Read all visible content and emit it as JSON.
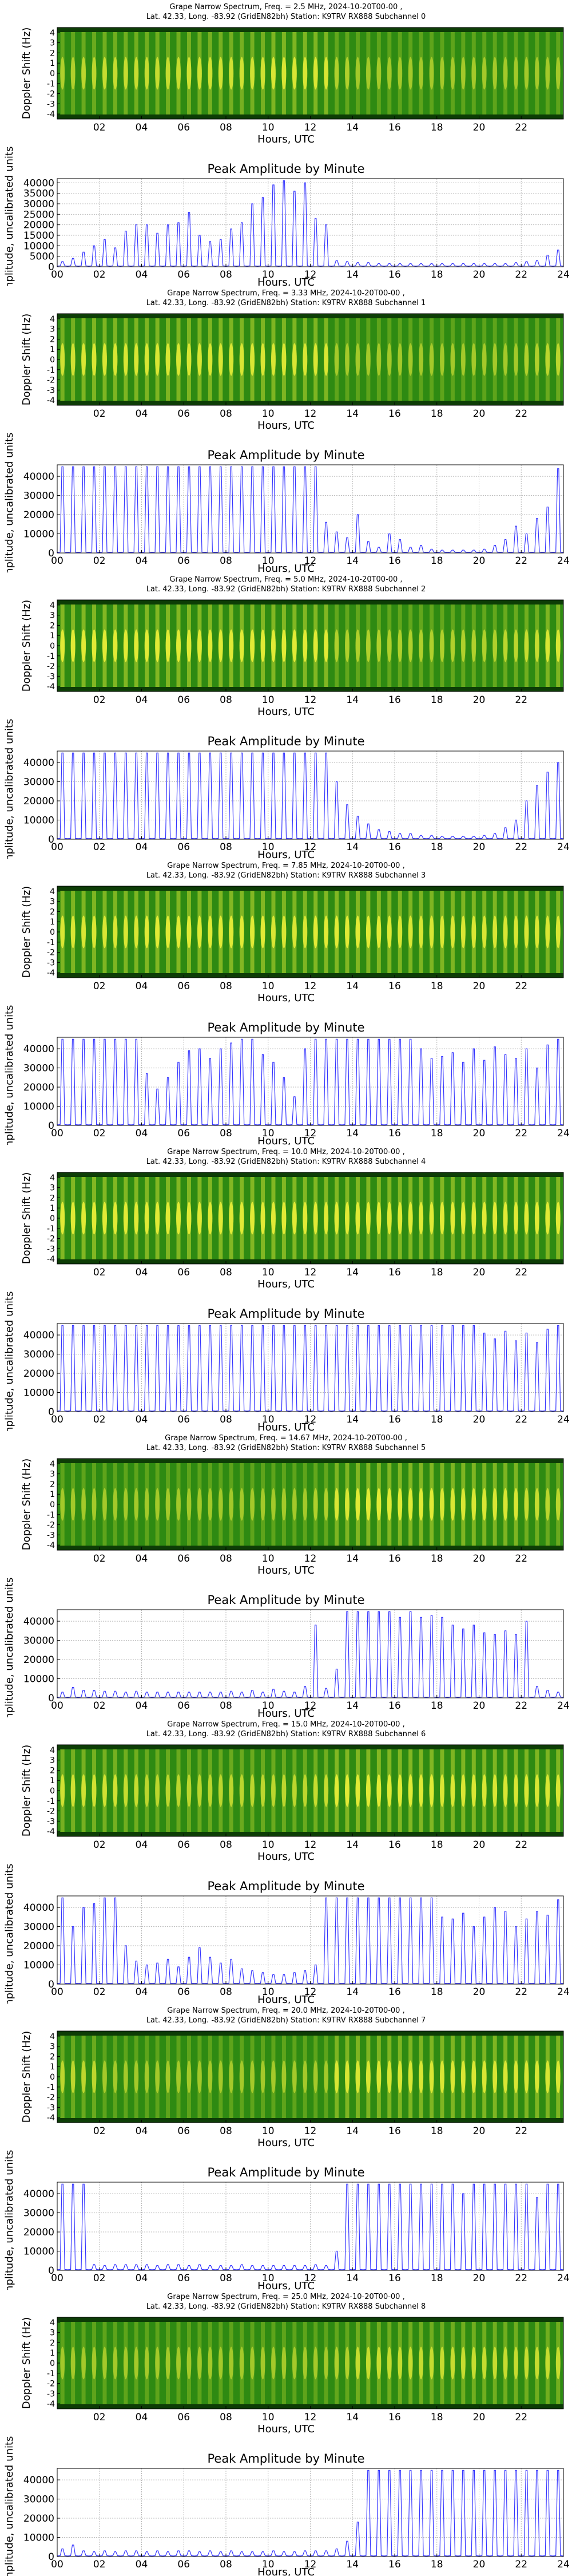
{
  "panel_common": {
    "spec_xlabel": "Hours, UTC",
    "spec_ylabel": "Doppler Shift (Hz)",
    "spec_xticks": [
      "02",
      "04",
      "06",
      "08",
      "10",
      "12",
      "14",
      "16",
      "18",
      "20",
      "22"
    ],
    "spec_yticks": [
      "4",
      "3",
      "2",
      "1",
      "0",
      "-1",
      "-2",
      "-3",
      "-4"
    ],
    "amp_title": "Peak Amplitude by Minute",
    "amp_xlabel": "Hours, UTC",
    "amp_ylabel": "Amplitude, uncalibrated units",
    "amp_xticks": [
      "00",
      "02",
      "04",
      "06",
      "08",
      "10",
      "12",
      "14",
      "16",
      "18",
      "20",
      "22",
      "24"
    ],
    "colors": {
      "line": "#3333ff",
      "spec_bg": "#2e8a12",
      "spec_peak": "#e8ee38",
      "spec_edge": "#0d3d06",
      "grid": "#b8b8b8"
    }
  },
  "chart_data": [
    {
      "type": "heatmap",
      "title_line1": "Grape Narrow Spectrum, Freq. = 2.5 MHz, 2024-10-20T00-00 ,",
      "title_line2": "Lat.  42.33, Long. -83.92 (GridEN82bh) Station: K9TRV RX888 Subchannel 0",
      "xlabel": "Hours, UTC",
      "ylabel": "Doppler Shift (Hz)",
      "xlim": [
        0,
        24
      ],
      "ylim": [
        -4.5,
        4.5
      ],
      "pulse_rows_hz": [
        0.5,
        0,
        -0.5
      ],
      "intensity": [
        0.4,
        0.5,
        0.6,
        0.6,
        0.6,
        0.6,
        0.7,
        0.7,
        0.7,
        0.7,
        0.8,
        0.8,
        0.8,
        0.4,
        0.3,
        0.3,
        0.3,
        0.3,
        0.3,
        0.3,
        0.3,
        0.3,
        0.3,
        0.3
      ]
    },
    {
      "type": "line",
      "title": "Peak Amplitude by Minute",
      "xlabel": "Hours, UTC",
      "ylabel": "Amplitude, uncalibrated units",
      "xlim": [
        0,
        24
      ],
      "ylim": [
        0,
        42000
      ],
      "yticks": [
        0,
        5000,
        10000,
        15000,
        20000,
        25000,
        30000,
        35000,
        40000
      ],
      "peaks": [
        2500,
        4000,
        7000,
        10000,
        13000,
        9000,
        17000,
        20000,
        20000,
        16000,
        20000,
        21000,
        26000,
        15000,
        12000,
        13000,
        18000,
        21000,
        30000,
        33000,
        39000,
        41000,
        36000,
        40000,
        23000,
        20000,
        3000,
        2500,
        2000,
        2000,
        1500,
        1500,
        1500,
        1500,
        1500,
        1500,
        1500,
        1500,
        1500,
        1500,
        1500,
        1500,
        1500,
        2000,
        2500,
        3000,
        5500,
        8000
      ]
    },
    {
      "type": "heatmap",
      "title_line1": "Grape Narrow Spectrum, Freq. = 3.33 MHz, 2024-10-20T00-00 ,",
      "title_line2": "Lat.  42.33, Long. -83.92 (GridEN82bh) Station: K9TRV RX888 Subchannel 1",
      "xlabel": "Hours, UTC",
      "ylabel": "Doppler Shift (Hz)",
      "xlim": [
        0,
        24
      ],
      "ylim": [
        -4.5,
        4.5
      ],
      "pulse_rows_hz": [
        0.5,
        0,
        -0.5
      ],
      "intensity": [
        0.7,
        0.8,
        0.8,
        0.8,
        0.8,
        0.8,
        0.8,
        0.8,
        0.8,
        0.8,
        0.8,
        0.8,
        0.8,
        0.3,
        0.3,
        0.3,
        0.3,
        0.3,
        0.3,
        0.3,
        0.3,
        0.3,
        0.4,
        0.5
      ]
    },
    {
      "type": "line",
      "title": "Peak Amplitude by Minute",
      "xlabel": "Hours, UTC",
      "ylabel": "Amplitude, uncalibrated units",
      "xlim": [
        0,
        24
      ],
      "ylim": [
        0,
        46000
      ],
      "yticks": [
        0,
        10000,
        20000,
        30000,
        40000
      ],
      "peaks": [
        45000,
        45000,
        45000,
        45000,
        45000,
        45000,
        45000,
        45000,
        45000,
        45000,
        45000,
        45000,
        45000,
        45000,
        45000,
        45000,
        45000,
        45000,
        45000,
        45000,
        45000,
        45000,
        45000,
        45000,
        45000,
        16000,
        11000,
        8000,
        20000,
        6000,
        3000,
        10000,
        7000,
        3000,
        4000,
        2000,
        1500,
        1500,
        1500,
        1500,
        2000,
        4000,
        7000,
        14000,
        10000,
        18000,
        24000,
        44000
      ]
    },
    {
      "type": "heatmap",
      "title_line1": "Grape Narrow Spectrum, Freq. = 5.0 MHz, 2024-10-20T00-00 ,",
      "title_line2": "Lat.  42.33, Long. -83.92 (GridEN82bh) Station: K9TRV RX888 Subchannel 2",
      "xlabel": "Hours, UTC",
      "ylabel": "Doppler Shift (Hz)",
      "xlim": [
        0,
        24
      ],
      "ylim": [
        -4.5,
        4.5
      ],
      "pulse_rows_hz": [
        0.5,
        0,
        -0.5
      ],
      "intensity": [
        0.9,
        0.9,
        0.9,
        0.9,
        0.9,
        0.9,
        0.9,
        0.9,
        0.9,
        0.9,
        0.9,
        0.9,
        0.9,
        0.4,
        0.4,
        0.4,
        0.4,
        0.4,
        0.4,
        0.4,
        0.4,
        0.5,
        0.6,
        0.8
      ]
    },
    {
      "type": "line",
      "title": "Peak Amplitude by Minute",
      "xlabel": "Hours, UTC",
      "ylabel": "Amplitude, uncalibrated units",
      "xlim": [
        0,
        24
      ],
      "ylim": [
        0,
        46000
      ],
      "yticks": [
        0,
        10000,
        20000,
        30000,
        40000
      ],
      "peaks": [
        45000,
        45000,
        45000,
        45000,
        45000,
        45000,
        45000,
        45000,
        45000,
        45000,
        45000,
        45000,
        45000,
        45000,
        45000,
        45000,
        45000,
        45000,
        45000,
        45000,
        45000,
        45000,
        45000,
        45000,
        45000,
        45000,
        30000,
        18000,
        12000,
        8000,
        5000,
        4000,
        3000,
        3000,
        2000,
        2000,
        1500,
        1500,
        1500,
        1500,
        2000,
        3000,
        6000,
        10000,
        20000,
        28000,
        35000,
        40000
      ]
    },
    {
      "type": "heatmap",
      "title_line1": "Grape Narrow Spectrum, Freq. = 7.85 MHz, 2024-10-20T00-00 ,",
      "title_line2": "Lat.  42.33, Long. -83.92 (GridEN82bh) Station: K9TRV RX888 Subchannel 3",
      "xlabel": "Hours, UTC",
      "ylabel": "Doppler Shift (Hz)",
      "xlim": [
        0,
        24
      ],
      "ylim": [
        -4.5,
        4.5
      ],
      "pulse_rows_hz": [
        0.5,
        0,
        -0.5
      ],
      "intensity": [
        0.8,
        0.8,
        0.8,
        0.8,
        0.9,
        0.9,
        0.9,
        0.9,
        0.9,
        0.9,
        0.8,
        0.8,
        0.9,
        0.9,
        0.9,
        0.9,
        0.8,
        0.8,
        0.8,
        0.8,
        0.8,
        0.8,
        0.8,
        0.8
      ]
    },
    {
      "type": "line",
      "title": "Peak Amplitude by Minute",
      "xlabel": "Hours, UTC",
      "ylabel": "Amplitude, uncalibrated units",
      "xlim": [
        0,
        24
      ],
      "ylim": [
        0,
        46000
      ],
      "yticks": [
        0,
        10000,
        20000,
        30000,
        40000
      ],
      "peaks": [
        45000,
        45000,
        45000,
        45000,
        45000,
        45000,
        45000,
        45000,
        27000,
        19000,
        25000,
        33000,
        39000,
        40000,
        35000,
        40000,
        43000,
        45000,
        45000,
        37000,
        33000,
        25000,
        15000,
        40000,
        45000,
        45000,
        45000,
        45000,
        45000,
        45000,
        45000,
        45000,
        45000,
        45000,
        40000,
        35000,
        36000,
        38000,
        33000,
        40000,
        34000,
        41000,
        37000,
        35000,
        40000,
        30000,
        42000,
        45000
      ]
    },
    {
      "type": "heatmap",
      "title_line1": "Grape Narrow Spectrum, Freq. = 10.0 MHz, 2024-10-20T00-00 ,",
      "title_line2": "Lat.  42.33, Long. -83.92 (GridEN82bh) Station: K9TRV RX888 Subchannel 4",
      "xlabel": "Hours, UTC",
      "ylabel": "Doppler Shift (Hz)",
      "xlim": [
        0,
        24
      ],
      "ylim": [
        -4.5,
        4.5
      ],
      "pulse_rows_hz": [
        0.5,
        0,
        -0.5
      ],
      "intensity": [
        0.9,
        0.9,
        0.9,
        0.9,
        0.9,
        0.9,
        0.9,
        0.9,
        0.9,
        0.9,
        0.9,
        0.9,
        0.9,
        0.9,
        0.9,
        0.9,
        0.9,
        0.9,
        0.9,
        0.9,
        0.9,
        0.9,
        0.9,
        0.9
      ]
    },
    {
      "type": "line",
      "title": "Peak Amplitude by Minute",
      "xlabel": "Hours, UTC",
      "ylabel": "Amplitude, uncalibrated units",
      "xlim": [
        0,
        24
      ],
      "ylim": [
        0,
        46000
      ],
      "yticks": [
        0,
        10000,
        20000,
        30000,
        40000
      ],
      "peaks": [
        45000,
        45000,
        45000,
        45000,
        45000,
        45000,
        45000,
        45000,
        45000,
        45000,
        45000,
        45000,
        45000,
        45000,
        45000,
        45000,
        45000,
        45000,
        45000,
        45000,
        45000,
        45000,
        45000,
        45000,
        45000,
        45000,
        45000,
        45000,
        45000,
        45000,
        45000,
        45000,
        45000,
        45000,
        45000,
        45000,
        45000,
        45000,
        45000,
        45000,
        41000,
        38000,
        42000,
        37000,
        41000,
        36000,
        43000,
        45000
      ]
    },
    {
      "type": "heatmap",
      "title_line1": "Grape Narrow Spectrum, Freq. = 14.67 MHz, 2024-10-20T00-00 ,",
      "title_line2": "Lat.  42.33, Long. -83.92 (GridEN82bh) Station: K9TRV RX888 Subchannel 5",
      "xlabel": "Hours, UTC",
      "ylabel": "Doppler Shift (Hz)",
      "xlim": [
        0,
        24
      ],
      "ylim": [
        -4.5,
        4.5
      ],
      "pulse_rows_hz": [
        0.5,
        0,
        -0.5
      ],
      "intensity": [
        0.3,
        0.3,
        0.3,
        0.3,
        0.3,
        0.3,
        0.3,
        0.3,
        0.3,
        0.3,
        0.3,
        0.3,
        0.4,
        0.8,
        0.9,
        0.9,
        0.9,
        0.9,
        0.8,
        0.8,
        0.8,
        0.8,
        0.6,
        0.5
      ]
    },
    {
      "type": "line",
      "title": "Peak Amplitude by Minute",
      "xlabel": "Hours, UTC",
      "ylabel": "Amplitude, uncalibrated units",
      "xlim": [
        0,
        24
      ],
      "ylim": [
        0,
        46000
      ],
      "yticks": [
        0,
        10000,
        20000,
        30000,
        40000
      ],
      "peaks": [
        3000,
        5500,
        4000,
        4000,
        3500,
        3500,
        3000,
        3500,
        3000,
        3000,
        3000,
        3000,
        3000,
        3000,
        3000,
        3000,
        3500,
        3000,
        4000,
        3000,
        4500,
        3500,
        3000,
        6000,
        38000,
        5000,
        15000,
        45000,
        45000,
        45000,
        45000,
        45000,
        42000,
        45000,
        42000,
        43000,
        42000,
        38000,
        36000,
        38000,
        34000,
        33000,
        35000,
        33000,
        40000,
        6000,
        4000,
        3000
      ]
    },
    {
      "type": "heatmap",
      "title_line1": "Grape Narrow Spectrum, Freq. = 15.0 MHz, 2024-10-20T00-00 ,",
      "title_line2": "Lat.  42.33, Long. -83.92 (GridEN82bh) Station: K9TRV RX888 Subchannel 6",
      "xlabel": "Hours, UTC",
      "ylabel": "Doppler Shift (Hz)",
      "xlim": [
        0,
        24
      ],
      "ylim": [
        -4.5,
        4.5
      ],
      "pulse_rows_hz": [
        0.5,
        0,
        -0.5
      ],
      "intensity": [
        0.7,
        0.7,
        0.7,
        0.6,
        0.5,
        0.5,
        0.5,
        0.5,
        0.5,
        0.5,
        0.5,
        0.5,
        0.6,
        0.9,
        0.9,
        0.9,
        0.9,
        0.9,
        0.8,
        0.8,
        0.8,
        0.8,
        0.8,
        0.8
      ]
    },
    {
      "type": "line",
      "title": "Peak Amplitude by Minute",
      "xlabel": "Hours, UTC",
      "ylabel": "Amplitude, uncalibrated units",
      "xlim": [
        0,
        24
      ],
      "ylim": [
        0,
        46000
      ],
      "yticks": [
        0,
        10000,
        20000,
        30000,
        40000
      ],
      "peaks": [
        45000,
        30000,
        40000,
        42000,
        45000,
        45000,
        20000,
        12000,
        10000,
        11000,
        13000,
        9000,
        14000,
        19000,
        14000,
        11000,
        13000,
        8000,
        7000,
        6000,
        5000,
        5000,
        6000,
        7000,
        10000,
        45000,
        45000,
        45000,
        45000,
        45000,
        45000,
        45000,
        45000,
        45000,
        45000,
        45000,
        35000,
        34000,
        37000,
        30000,
        35000,
        40000,
        38000,
        30000,
        34000,
        38000,
        36000,
        44000
      ]
    },
    {
      "type": "heatmap",
      "title_line1": "Grape Narrow Spectrum, Freq. = 20.0 MHz, 2024-10-20T00-00 ,",
      "title_line2": "Lat.  42.33, Long. -83.92 (GridEN82bh) Station: K9TRV RX888 Subchannel 7",
      "xlabel": "Hours, UTC",
      "ylabel": "Doppler Shift (Hz)",
      "xlim": [
        0,
        24
      ],
      "ylim": [
        -4.5,
        4.5
      ],
      "pulse_rows_hz": [
        0.5,
        0,
        -0.5
      ],
      "intensity": [
        0.5,
        0.5,
        0.3,
        0.3,
        0.3,
        0.3,
        0.3,
        0.3,
        0.3,
        0.3,
        0.3,
        0.3,
        0.3,
        0.8,
        0.8,
        0.8,
        0.8,
        0.8,
        0.8,
        0.8,
        0.8,
        0.8,
        0.8,
        0.8
      ]
    },
    {
      "type": "line",
      "title": "Peak Amplitude by Minute",
      "xlabel": "Hours, UTC",
      "ylabel": "Amplitude, uncalibrated units",
      "xlim": [
        0,
        24
      ],
      "ylim": [
        0,
        46000
      ],
      "yticks": [
        0,
        10000,
        20000,
        30000,
        40000
      ],
      "peaks": [
        45000,
        45000,
        45000,
        3000,
        2500,
        3000,
        3000,
        3000,
        3000,
        2500,
        3000,
        3000,
        2500,
        3000,
        2500,
        2500,
        2500,
        3000,
        2500,
        2500,
        2500,
        2500,
        2500,
        2500,
        3000,
        2500,
        10000,
        45000,
        45000,
        45000,
        45000,
        45000,
        45000,
        45000,
        45000,
        45000,
        45000,
        45000,
        40000,
        45000,
        45000,
        45000,
        45000,
        45000,
        45000,
        38000,
        45000,
        45000
      ]
    },
    {
      "type": "heatmap",
      "title_line1": "Grape Narrow Spectrum, Freq. = 25.0 MHz, 2024-10-20T00-00 ,",
      "title_line2": "Lat.  42.33, Long. -83.92 (GridEN82bh) Station: K9TRV RX888 Subchannel 8",
      "xlabel": "Hours, UTC",
      "ylabel": "Doppler Shift (Hz)",
      "xlim": [
        0,
        24
      ],
      "ylim": [
        -4.5,
        4.5
      ],
      "pulse_rows_hz": [
        0.5,
        0,
        -0.5
      ],
      "intensity": [
        0.3,
        0.3,
        0.3,
        0.3,
        0.3,
        0.3,
        0.3,
        0.3,
        0.3,
        0.3,
        0.3,
        0.3,
        0.3,
        0.4,
        0.6,
        0.6,
        0.6,
        0.6,
        0.6,
        0.6,
        0.6,
        0.6,
        0.6,
        0.6
      ]
    },
    {
      "type": "line",
      "title": "Peak Amplitude by Minute",
      "xlabel": "Hours, UTC",
      "ylabel": "Amplitude, uncalibrated units",
      "xlim": [
        0,
        24
      ],
      "ylim": [
        0,
        46000
      ],
      "yticks": [
        0,
        10000,
        20000,
        30000,
        40000
      ],
      "peaks": [
        4000,
        6000,
        3000,
        2500,
        3000,
        2500,
        3000,
        3000,
        2500,
        3000,
        2500,
        3000,
        3000,
        2500,
        3000,
        2500,
        3000,
        2500,
        2500,
        2500,
        3000,
        2500,
        2500,
        3000,
        3000,
        3000,
        4000,
        8000,
        18000,
        45000,
        45000,
        45000,
        45000,
        45000,
        45000,
        45000,
        45000,
        45000,
        45000,
        45000,
        45000,
        45000,
        45000,
        45000,
        45000,
        45000,
        45000,
        45000
      ]
    }
  ]
}
